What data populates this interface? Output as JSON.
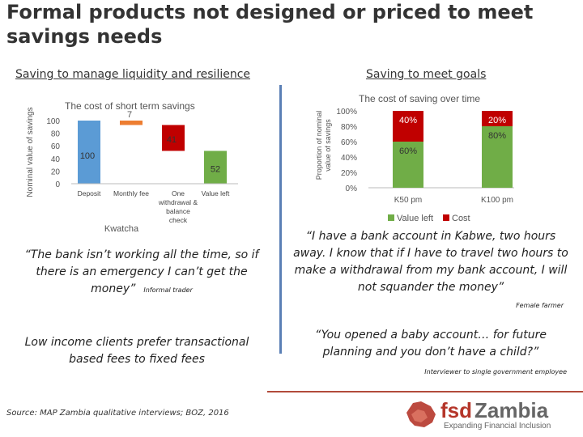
{
  "title": "Formal products not designed or priced to meet savings needs",
  "left": {
    "subtitle": "Saving to manage liquidity and resilience",
    "quote": "“The bank isn’t working all the time, so if there is an emergency I can’t get the money”",
    "quote_attribution": "Informal trader",
    "statement": "Low income clients prefer transactional based fees to fixed fees"
  },
  "right": {
    "subtitle": "Saving to meet goals",
    "quote": "“I have a bank account in Kabwe, two hours away. I know that if I have to travel two hours to make a withdrawal from my bank account, I will not squander the money”",
    "quote_attribution": "Female farmer",
    "quote2": "“You opened a baby account… for future planning and you don’t have a child?”",
    "quote2_attribution": "Interviewer to single government employee"
  },
  "footer": {
    "source": "Source: MAP Zambia qualitative interviews; BOZ, 2016"
  },
  "logo": {
    "brand_prefix": "fsd",
    "brand_name": "Zambia",
    "tagline": "Expanding Financial Inclusion",
    "colors": {
      "red": "#b5362a",
      "gray": "#666666"
    }
  },
  "chart_data": [
    {
      "type": "bar",
      "subtype": "waterfall",
      "title": "The cost of short term savings",
      "ylabel": "Nominal value of savings",
      "xlabel": "Kwatcha",
      "ylim": [
        0,
        100
      ],
      "yticks": [
        "0",
        "20",
        "40",
        "60",
        "80",
        "100"
      ],
      "categories": [
        "Deposit",
        "Monthly fee",
        "One withdrawal & balance check",
        "Value left"
      ],
      "category_lines": [
        [
          "Deposit"
        ],
        [
          "Monthly fee"
        ],
        [
          "One",
          "withdrawal &",
          "balance",
          "check"
        ],
        [
          "Value left"
        ]
      ],
      "bars": [
        {
          "category": "Deposit",
          "base": 0,
          "value": 100,
          "label": "100",
          "color": "#5b9bd5"
        },
        {
          "category": "Monthly fee",
          "base": 93,
          "value": 7,
          "label": "7",
          "color": "#ed7d31"
        },
        {
          "category": "One withdrawal & balance check",
          "base": 52,
          "value": 41,
          "label": "41",
          "color": "#c00000"
        },
        {
          "category": "Value left",
          "base": 0,
          "value": 52,
          "label": "52",
          "color": "#70ad47"
        }
      ],
      "grid": false
    },
    {
      "type": "bar",
      "subtype": "stacked-100",
      "title": "The cost of  saving over time",
      "ylabel": "Proportion of nominal value of savings",
      "ylim": [
        0,
        100
      ],
      "yticks": [
        "0%",
        "20%",
        "40%",
        "60%",
        "80%",
        "100%"
      ],
      "categories": [
        "K50 pm",
        "K100 pm"
      ],
      "series": [
        {
          "name": "Value left",
          "values": [
            60,
            80
          ],
          "labels": [
            "60%",
            "80%"
          ],
          "color": "#70ad47"
        },
        {
          "name": "Cost",
          "values": [
            40,
            20
          ],
          "labels": [
            "40%",
            "20%"
          ],
          "color": "#c00000"
        }
      ],
      "legend": "bottom",
      "grid": false
    }
  ]
}
